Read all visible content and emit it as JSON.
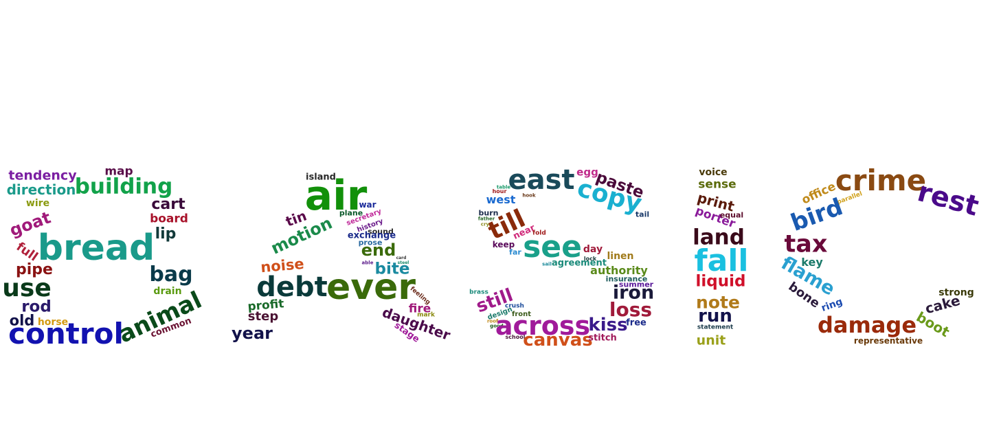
{
  "cloud": [
    {
      "word": "tendency",
      "color": "#7b1fa2",
      "group": "B"
    },
    {
      "word": "map",
      "color": "#5a0f4a",
      "group": "B"
    },
    {
      "word": "direction",
      "color": "#1a9a8a",
      "group": "B"
    },
    {
      "word": "building",
      "color": "#12a24a",
      "group": "B"
    },
    {
      "word": "wire",
      "color": "#8a9a10",
      "group": "B"
    },
    {
      "word": "cart",
      "color": "#3a0a3a",
      "group": "B"
    },
    {
      "word": "board",
      "color": "#a8122a",
      "group": "B"
    },
    {
      "word": "goat",
      "color": "#a01a7a",
      "group": "B"
    },
    {
      "word": "lip",
      "color": "#123a3a",
      "group": "B"
    },
    {
      "word": "bread",
      "color": "#1a9a8a",
      "group": "B"
    },
    {
      "word": "full",
      "color": "#b0203a",
      "group": "B"
    },
    {
      "word": "pipe",
      "color": "#8a1212",
      "group": "B"
    },
    {
      "word": "bag",
      "color": "#0a3a4a",
      "group": "B"
    },
    {
      "word": "use",
      "color": "#0a3a1a",
      "group": "B"
    },
    {
      "word": "drain",
      "color": "#5a9a10",
      "group": "B"
    },
    {
      "word": "rod",
      "color": "#2a1a6a",
      "group": "B"
    },
    {
      "word": "animal",
      "color": "#0a4a1a",
      "group": "B"
    },
    {
      "word": "old",
      "color": "#12124a",
      "group": "B"
    },
    {
      "word": "horse",
      "color": "#d49a10",
      "group": "B"
    },
    {
      "word": "common",
      "color": "#6a1232",
      "group": "B"
    },
    {
      "word": "control",
      "color": "#1212b0",
      "group": "B"
    },
    {
      "word": "island",
      "color": "#2a2a2a",
      "group": "A"
    },
    {
      "word": "air",
      "color": "#12900a",
      "group": "A"
    },
    {
      "word": "war",
      "color": "#1a2a9a",
      "group": "A"
    },
    {
      "word": "tin",
      "color": "#5a0a4a",
      "group": "A"
    },
    {
      "word": "plane",
      "color": "#0a5a2a",
      "group": "A"
    },
    {
      "word": "secretary",
      "color": "#c02a9a",
      "group": "A"
    },
    {
      "word": "motion",
      "color": "#1a8a4a",
      "group": "A"
    },
    {
      "word": "history",
      "color": "#6a1a8a",
      "group": "A"
    },
    {
      "word": "sound",
      "color": "#2a2a2a",
      "group": "A"
    },
    {
      "word": "exchange",
      "color": "#1a2a8a",
      "group": "A"
    },
    {
      "word": "prose",
      "color": "#2a6aa0",
      "group": "A"
    },
    {
      "word": "end",
      "color": "#3a6a0a",
      "group": "A"
    },
    {
      "word": "noise",
      "color": "#d0501a",
      "group": "A"
    },
    {
      "word": "card",
      "color": "#3a3a3a",
      "group": "A"
    },
    {
      "word": "able",
      "color": "#5a1a8a",
      "group": "A"
    },
    {
      "word": "steel",
      "color": "#1a8a6a",
      "group": "A"
    },
    {
      "word": "bite",
      "color": "#1a8aa0",
      "group": "A"
    },
    {
      "word": "debt",
      "color": "#0a3a3a",
      "group": "A"
    },
    {
      "word": "ever",
      "color": "#3a6a0a",
      "group": "A"
    },
    {
      "word": "feeling",
      "color": "#6a2a1a",
      "group": "A"
    },
    {
      "word": "profit",
      "color": "#1a6a2a",
      "group": "A"
    },
    {
      "word": "fire",
      "color": "#a01a7a",
      "group": "A"
    },
    {
      "word": "step",
      "color": "#4a1232",
      "group": "A"
    },
    {
      "word": "mark",
      "color": "#8a8a10",
      "group": "A"
    },
    {
      "word": "daughter",
      "color": "#4a0a4a",
      "group": "A"
    },
    {
      "word": "stage",
      "color": "#a01a9a",
      "group": "A"
    },
    {
      "word": "year",
      "color": "#12124a",
      "group": "A"
    },
    {
      "word": "egg",
      "color": "#c02a8a",
      "group": "S"
    },
    {
      "word": "east",
      "color": "#1a4a5a",
      "group": "S"
    },
    {
      "word": "paste",
      "color": "#4a0a3a",
      "group": "S"
    },
    {
      "word": "copy",
      "color": "#1ab0d0",
      "group": "S"
    },
    {
      "word": "tail",
      "color": "#1a3a6a",
      "group": "S"
    },
    {
      "word": "table",
      "color": "#1a9a6a",
      "group": "S"
    },
    {
      "word": "hour",
      "color": "#a01a1a",
      "group": "S"
    },
    {
      "word": "hook",
      "color": "#6a3a1a",
      "group": "S"
    },
    {
      "word": "west",
      "color": "#1a6ad0",
      "group": "S"
    },
    {
      "word": "burn",
      "color": "#1a2a4a",
      "group": "S"
    },
    {
      "word": "father",
      "color": "#2a6a2a",
      "group": "S"
    },
    {
      "word": "till",
      "color": "#8a2a0a",
      "group": "S"
    },
    {
      "word": "cry",
      "color": "#8a8a1a",
      "group": "S"
    },
    {
      "word": "near",
      "color": "#d02a7a",
      "group": "S"
    },
    {
      "word": "fold",
      "color": "#a01a1a",
      "group": "S"
    },
    {
      "word": "keep",
      "color": "#5a0a5a",
      "group": "S"
    },
    {
      "word": "see",
      "color": "#1aa08a",
      "group": "S"
    },
    {
      "word": "far",
      "color": "#2a8ad0",
      "group": "S"
    },
    {
      "word": "day",
      "color": "#a01a3a",
      "group": "S"
    },
    {
      "word": "lock",
      "color": "#1a3a3a",
      "group": "S"
    },
    {
      "word": "sail",
      "color": "#1a8a9a",
      "group": "S"
    },
    {
      "word": "agreement",
      "color": "#1a8a7a",
      "group": "S"
    },
    {
      "word": "linen",
      "color": "#a07a1a",
      "group": "S"
    },
    {
      "word": "authority",
      "color": "#5a8a1a",
      "group": "S"
    },
    {
      "word": "insurance",
      "color": "#1a5a5a",
      "group": "S"
    },
    {
      "word": "summer",
      "color": "#5a1a9a",
      "group": "S"
    },
    {
      "word": "iron",
      "color": "#1a1a3a",
      "group": "S"
    },
    {
      "word": "brass",
      "color": "#1a8a7a",
      "group": "S"
    },
    {
      "word": "still",
      "color": "#a01a8a",
      "group": "S"
    },
    {
      "word": "crush",
      "color": "#1a4a9a",
      "group": "S"
    },
    {
      "word": "design",
      "color": "#1a7a6a",
      "group": "S"
    },
    {
      "word": "front",
      "color": "#3a5a1a",
      "group": "S"
    },
    {
      "word": "loss",
      "color": "#a01a3a",
      "group": "S"
    },
    {
      "word": "roof",
      "color": "#c08a1a",
      "group": "S"
    },
    {
      "word": "good",
      "color": "#1a5a1a",
      "group": "S"
    },
    {
      "word": "across",
      "color": "#a01a9a",
      "group": "S"
    },
    {
      "word": "kiss",
      "color": "#3a1a8a",
      "group": "S"
    },
    {
      "word": "free",
      "color": "#1a2a8a",
      "group": "S"
    },
    {
      "word": "school",
      "color": "#4a1a3a",
      "group": "S"
    },
    {
      "word": "canvas",
      "color": "#d0501a",
      "group": "S"
    },
    {
      "word": "stitch",
      "color": "#a01a5a",
      "group": "S"
    },
    {
      "word": "voice",
      "color": "#4a3a0a",
      "group": "I"
    },
    {
      "word": "sense",
      "color": "#5a6a0a",
      "group": "I"
    },
    {
      "word": "print",
      "color": "#5a1a0a",
      "group": "I"
    },
    {
      "word": "porter",
      "color": "#8a1a9a",
      "group": "I"
    },
    {
      "word": "equal",
      "color": "#5a0a2a",
      "group": "I"
    },
    {
      "word": "land",
      "color": "#3a0a1a",
      "group": "I"
    },
    {
      "word": "fall",
      "color": "#1ac0e0",
      "group": "I"
    },
    {
      "word": "liquid",
      "color": "#d0102a",
      "group": "I"
    },
    {
      "word": "note",
      "color": "#b07a1a",
      "group": "I"
    },
    {
      "word": "run",
      "color": "#12124a",
      "group": "I"
    },
    {
      "word": "statement",
      "color": "#1a3a4a",
      "group": "I"
    },
    {
      "word": "unit",
      "color": "#9aa01a",
      "group": "I"
    },
    {
      "word": "office",
      "color": "#c08a1a",
      "group": "C"
    },
    {
      "word": "crime",
      "color": "#8a4a12",
      "group": "C"
    },
    {
      "word": "parallel",
      "color": "#d0a01a",
      "group": "C"
    },
    {
      "word": "rest",
      "color": "#4a0a8a",
      "group": "C"
    },
    {
      "word": "bird",
      "color": "#1a5ab0",
      "group": "C"
    },
    {
      "word": "tax",
      "color": "#6a0a3a",
      "group": "C"
    },
    {
      "word": "key",
      "color": "#1a7a6a",
      "group": "C"
    },
    {
      "word": "flame",
      "color": "#2aa0d0",
      "group": "C"
    },
    {
      "word": "bone",
      "color": "#2a1a3a",
      "group": "C"
    },
    {
      "word": "ring",
      "color": "#1a4ab0",
      "group": "C"
    },
    {
      "word": "strong",
      "color": "#3a3a0a",
      "group": "C"
    },
    {
      "word": "cake",
      "color": "#2a1a3a",
      "group": "C"
    },
    {
      "word": "boot",
      "color": "#6a9a1a",
      "group": "C"
    },
    {
      "word": "damage",
      "color": "#9a2a0a",
      "group": "C"
    },
    {
      "word": "representative",
      "color": "#6a3a0a",
      "group": "C"
    }
  ]
}
